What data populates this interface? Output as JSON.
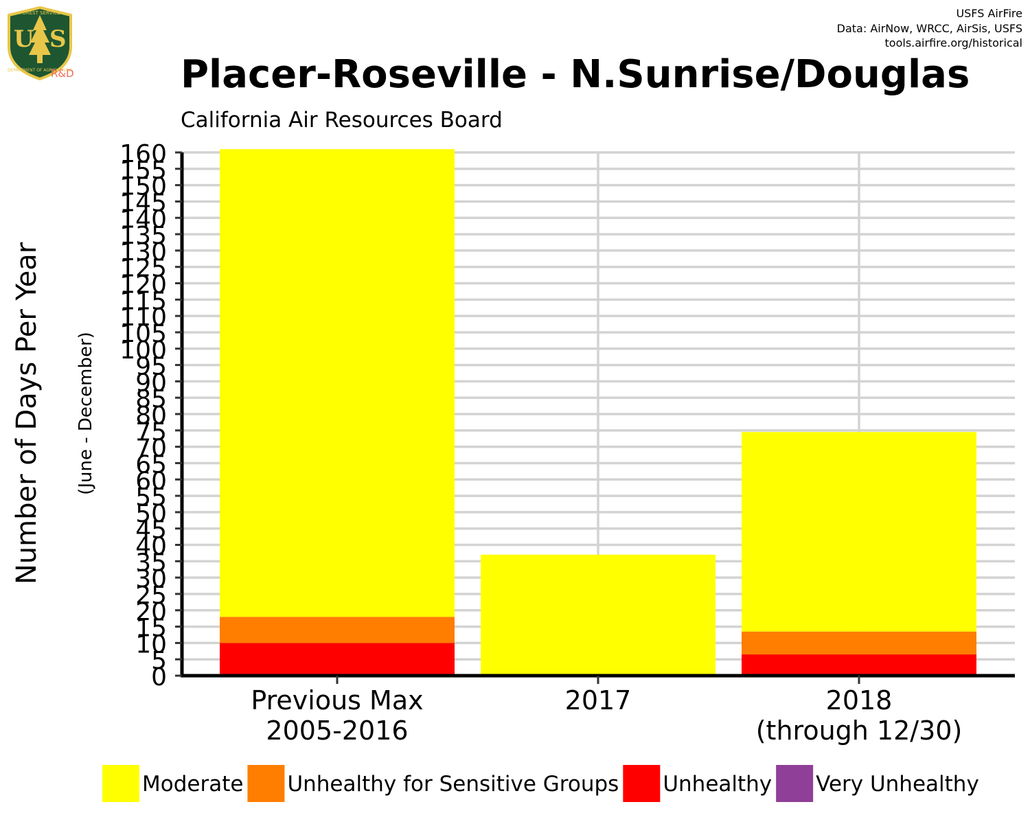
{
  "header": {
    "credit_lines": [
      "USFS AirFire",
      "Data: AirNow, WRCC, AirSis, USFS",
      "tools.airfire.org/historical"
    ],
    "logo_text": {
      "top": "FOREST SERVICE",
      "letters": "US",
      "bottom": "DEPARTMENT OF AGRICULTURE",
      "rd": "R&D"
    }
  },
  "chart_data": {
    "type": "bar",
    "stacked": true,
    "title": "Placer-Roseville - N.Sunrise/Douglas",
    "subtitle": "California Air Resources Board",
    "ylabel": "Number of Days Per Year",
    "ylabel_sub": "(June - December)",
    "xlabel": "",
    "categories": [
      [
        "Previous Max",
        "2005-2016"
      ],
      [
        "2017"
      ],
      [
        "2018",
        "(through 12/30)"
      ]
    ],
    "series": [
      {
        "name": "Moderate",
        "color": "#FFFF00",
        "values": [
          143,
          37,
          61
        ]
      },
      {
        "name": "Unhealthy for Sensitive Groups",
        "color": "#FF7E00",
        "values": [
          8,
          0,
          7
        ]
      },
      {
        "name": "Unhealthy",
        "color": "#FF0000",
        "values": [
          10,
          0,
          6.5
        ]
      },
      {
        "name": "Very Unhealthy",
        "color": "#8F3F97",
        "values": [
          0,
          0,
          0
        ]
      }
    ],
    "stack_order_bottom_to_top": [
      "Very Unhealthy",
      "Unhealthy",
      "Unhealthy for Sensitive Groups",
      "Moderate"
    ],
    "ylim": [
      0,
      160
    ],
    "yticks": [
      0,
      5,
      10,
      15,
      20,
      25,
      30,
      35,
      40,
      45,
      50,
      55,
      60,
      65,
      70,
      75,
      80,
      85,
      90,
      95,
      100,
      105,
      110,
      115,
      120,
      125,
      130,
      135,
      140,
      145,
      150,
      155,
      160
    ],
    "grid": true,
    "legend_position": "bottom"
  }
}
